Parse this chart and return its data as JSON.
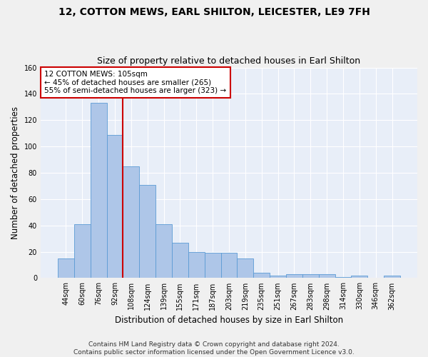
{
  "title": "12, COTTON MEWS, EARL SHILTON, LEICESTER, LE9 7FH",
  "subtitle": "Size of property relative to detached houses in Earl Shilton",
  "xlabel": "Distribution of detached houses by size in Earl Shilton",
  "ylabel": "Number of detached properties",
  "categories": [
    "44sqm",
    "60sqm",
    "76sqm",
    "92sqm",
    "108sqm",
    "124sqm",
    "139sqm",
    "155sqm",
    "171sqm",
    "187sqm",
    "203sqm",
    "219sqm",
    "235sqm",
    "251sqm",
    "267sqm",
    "283sqm",
    "298sqm",
    "314sqm",
    "330sqm",
    "346sqm",
    "362sqm"
  ],
  "bar_values": [
    15,
    41,
    133,
    109,
    85,
    71,
    41,
    27,
    20,
    19,
    19,
    15,
    4,
    2,
    3,
    3,
    3,
    1,
    2,
    0,
    2
  ],
  "bar_color": "#aec6e8",
  "bar_edge_color": "#5b9bd5",
  "annotation_text": "12 COTTON MEWS: 105sqm\n← 45% of detached houses are smaller (265)\n55% of semi-detached houses are larger (323) →",
  "annotation_box_color": "#ffffff",
  "annotation_box_edge": "#cc0000",
  "line_color": "#cc0000",
  "ylim": [
    0,
    160
  ],
  "yticks": [
    0,
    20,
    40,
    60,
    80,
    100,
    120,
    140,
    160
  ],
  "bg_color": "#e8eef8",
  "grid_color": "#ffffff",
  "footer": "Contains HM Land Registry data © Crown copyright and database right 2024.\nContains public sector information licensed under the Open Government Licence v3.0.",
  "title_fontsize": 10,
  "subtitle_fontsize": 9,
  "ylabel_fontsize": 8.5,
  "xlabel_fontsize": 8.5,
  "tick_fontsize": 7,
  "footer_fontsize": 6.5
}
